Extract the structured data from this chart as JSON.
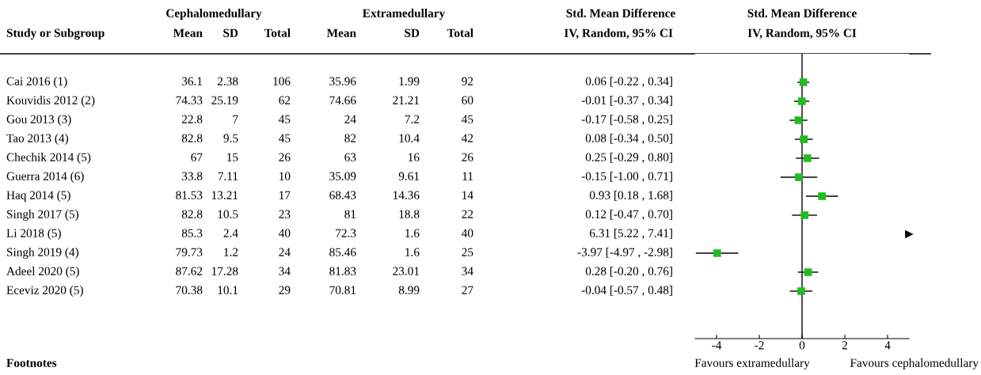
{
  "chart_data": [
    {
      "type": "other",
      "annotations": [
        "Cephalomedullary",
        "Extramedullary",
        "Std. Mean Difference",
        "Footnotes"
      ],
      "categories": [
        "Study or Subgroup",
        "Mean",
        "SD",
        "Total",
        "Mean",
        "SD",
        "Total",
        "IV, Random, 95% CI"
      ],
      "cell_labels": [
        [
          "Cai 2016 (1)",
          "36.1",
          "2.38",
          "106",
          "35.96",
          "1.99",
          "92"
        ],
        [
          "Kouvidis 2012 (2)",
          "74.33",
          "25.19",
          "62",
          "74.66",
          "21.21",
          "60"
        ],
        [
          "Gou 2013 (3)",
          "22.8",
          "7",
          "45",
          "24",
          "7.2",
          "45"
        ],
        [
          "Tao 2013 (4)",
          "82.8",
          "9.5",
          "45",
          "82",
          "10.4",
          "42"
        ],
        [
          "Chechik 2014 (5)",
          "67",
          "15",
          "26",
          "63",
          "16",
          "26"
        ],
        [
          "Guerra 2014 (6)",
          "33.8",
          "7.11",
          "10",
          "35.09",
          "9.61",
          "11"
        ],
        [
          "Haq 2014 (5)",
          "81.53",
          "13.21",
          "17",
          "68.43",
          "14.36",
          "14"
        ],
        [
          "Singh 2017 (5)",
          "82.8",
          "10.5",
          "23",
          "81",
          "18.8",
          "22"
        ],
        [
          "Li 2018 (5)",
          "85.3",
          "2.4",
          "40",
          "72.3",
          "1.6",
          "40"
        ],
        [
          "Singh 2019 (4)",
          "79.73",
          "1.2",
          "24",
          "85.46",
          "1.6",
          "25"
        ],
        [
          "Adeel 2020 (5)",
          "87.62",
          "17.28",
          "34",
          "81.83",
          "23.01",
          "34"
        ],
        [
          "Eceviz 2020 (5)",
          "70.38",
          "10.1",
          "29",
          "70.81",
          "8.99",
          "27"
        ]
      ]
    },
    {
      "type": "scatter",
      "orientation": "horizontal",
      "title": "Std. Mean Difference",
      "subtitle": "IV, Random, 95% CI",
      "categories": [
        null,
        null,
        null,
        null,
        null,
        null,
        null,
        null,
        null,
        null,
        null,
        null,
        null,
        null,
        null
      ],
      "values": [
        null,
        0.06,
        -0.01,
        -0.17,
        0.08,
        0.25,
        -0.15,
        0.93,
        0.12,
        null,
        -3.97,
        0.28,
        -0.04,
        null,
        null
      ],
      "errors": [
        null,
        [
          -0.22,
          0.34
        ],
        [
          -0.37,
          0.34
        ],
        [
          -0.58,
          0.25
        ],
        [
          -0.34,
          0.5
        ],
        [
          -0.29,
          0.8
        ],
        [
          -1.0,
          0.71
        ],
        [
          0.18,
          1.68
        ],
        [
          -0.47,
          0.7
        ],
        null,
        [
          -4.97,
          -2.98
        ],
        [
          -0.2,
          0.76
        ],
        [
          -0.57,
          0.48
        ],
        null,
        null
      ],
      "value_labels": [
        null,
        "0.06 [-0.22 , 0.34]",
        "-0.01 [-0.37 , 0.34]",
        "-0.17 [-0.58 , 0.25]",
        "0.08 [-0.34 , 0.50]",
        "0.25 [-0.29 , 0.80]",
        "-0.15 [-1.00 , 0.71]",
        "0.93 [0.18 , 1.68]",
        "0.12 [-0.47 , 0.70]",
        "6.31 [5.22 , 7.41]",
        "-3.97 [-4.97 , -2.98]",
        "0.28 [-0.20 , 0.76]",
        "-0.04 [-0.57 , 0.48]",
        null,
        null
      ],
      "color": "#22bb22",
      "marker": "square",
      "xlim": [
        -5,
        5
      ],
      "xticks": [
        {
          "value": -4,
          "label": "-4"
        },
        {
          "value": -2,
          "label": "-2"
        },
        0,
        2,
        4
      ],
      "ref_lines": [
        {
          "axis": "x",
          "value": 0,
          "color": "#000000"
        }
      ],
      "annotations": [
        "Favours extramedullary",
        "Favours cephalomedullary"
      ],
      "tick_labels": "x",
      "grid": false,
      "legend": false
    }
  ]
}
